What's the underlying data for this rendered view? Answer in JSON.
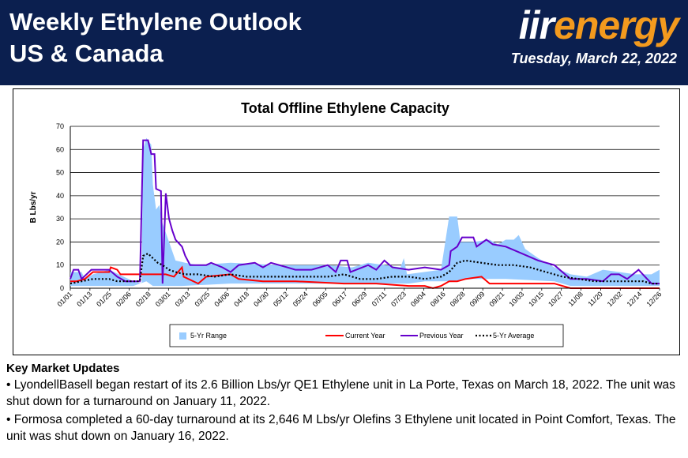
{
  "header": {
    "title_line1": "Weekly Ethylene Outlook",
    "title_line2": "US & Canada",
    "logo_iir": "iir",
    "logo_energy": "energy",
    "date": "Tuesday, March 22, 2022"
  },
  "colors": {
    "header_bg": "#0b1f4f",
    "logo_orange": "#f39a1e",
    "range_fill": "#99ccff",
    "current_year": "#ff0000",
    "previous_year": "#6600cc",
    "avg": "#000000"
  },
  "chart_data": {
    "type": "area",
    "title": "Total Offline Ethylene Capacity",
    "ylabel": "B Lbs/yr",
    "xlabel": "",
    "ylim": [
      0,
      70
    ],
    "yticks": [
      0,
      10,
      20,
      30,
      40,
      50,
      60,
      70
    ],
    "grid": true,
    "legend_position": "bottom",
    "x_ticks": [
      "01/01",
      "01/13",
      "01/25",
      "02/06",
      "02/18",
      "03/01",
      "03/13",
      "03/25",
      "04/06",
      "04/18",
      "04/30",
      "05/12",
      "05/24",
      "06/05",
      "06/17",
      "06/29",
      "07/11",
      "07/23",
      "08/04",
      "08/16",
      "08/28",
      "09/09",
      "09/21",
      "10/03",
      "10/15",
      "10/27",
      "11/08",
      "11/20",
      "12/02",
      "12/14",
      "12/26"
    ],
    "day_range": [
      1,
      365
    ],
    "series": [
      {
        "name": "5-Yr Range",
        "kind": "band",
        "low": [
          [
            1,
            1
          ],
          [
            25,
            1
          ],
          [
            40,
            1
          ],
          [
            48,
            3
          ],
          [
            52,
            1
          ],
          [
            70,
            1
          ],
          [
            100,
            2
          ],
          [
            140,
            2
          ],
          [
            180,
            2
          ],
          [
            210,
            2
          ],
          [
            220,
            3
          ],
          [
            235,
            3
          ],
          [
            250,
            4
          ],
          [
            270,
            4
          ],
          [
            300,
            3
          ],
          [
            310,
            1
          ],
          [
            330,
            1
          ],
          [
            365,
            1
          ]
        ],
        "high": [
          [
            1,
            7
          ],
          [
            8,
            7
          ],
          [
            10,
            4
          ],
          [
            15,
            6
          ],
          [
            25,
            8
          ],
          [
            40,
            3
          ],
          [
            45,
            2
          ],
          [
            46,
            60
          ],
          [
            48,
            65
          ],
          [
            51,
            62
          ],
          [
            52,
            45
          ],
          [
            54,
            34
          ],
          [
            56,
            36
          ],
          [
            58,
            28
          ],
          [
            62,
            20
          ],
          [
            66,
            12
          ],
          [
            72,
            11
          ],
          [
            80,
            10
          ],
          [
            100,
            11
          ],
          [
            130,
            10
          ],
          [
            160,
            10
          ],
          [
            175,
            9
          ],
          [
            185,
            11
          ],
          [
            205,
            9
          ],
          [
            207,
            13
          ],
          [
            209,
            6
          ],
          [
            230,
            8
          ],
          [
            235,
            31
          ],
          [
            240,
            31
          ],
          [
            242,
            20
          ],
          [
            250,
            20
          ],
          [
            260,
            21
          ],
          [
            265,
            19
          ],
          [
            270,
            21
          ],
          [
            275,
            21
          ],
          [
            278,
            23
          ],
          [
            282,
            17
          ],
          [
            290,
            13
          ],
          [
            300,
            9
          ],
          [
            310,
            6
          ],
          [
            320,
            5
          ],
          [
            330,
            8
          ],
          [
            340,
            7
          ],
          [
            350,
            6
          ],
          [
            360,
            6
          ],
          [
            365,
            8
          ]
        ]
      },
      {
        "name": "Current Year",
        "kind": "line",
        "points": [
          [
            1,
            3
          ],
          [
            5,
            3
          ],
          [
            10,
            4
          ],
          [
            15,
            7
          ],
          [
            25,
            7
          ],
          [
            26,
            9
          ],
          [
            30,
            8
          ],
          [
            32,
            6
          ],
          [
            45,
            6
          ],
          [
            60,
            6
          ],
          [
            65,
            5
          ],
          [
            70,
            9
          ],
          [
            71,
            5
          ],
          [
            80,
            2
          ],
          [
            85,
            5
          ],
          [
            100,
            6
          ],
          [
            105,
            4
          ],
          [
            120,
            3
          ],
          [
            140,
            3
          ],
          [
            170,
            2
          ],
          [
            190,
            2
          ],
          [
            210,
            1
          ],
          [
            220,
            1
          ],
          [
            225,
            0
          ],
          [
            230,
            1
          ],
          [
            235,
            3
          ],
          [
            240,
            3
          ],
          [
            245,
            4
          ],
          [
            255,
            5
          ],
          [
            260,
            2
          ],
          [
            270,
            2
          ],
          [
            290,
            2
          ],
          [
            300,
            2
          ],
          [
            305,
            1
          ],
          [
            310,
            0
          ],
          [
            320,
            0
          ],
          [
            330,
            0
          ],
          [
            345,
            0
          ],
          [
            360,
            0
          ],
          [
            365,
            0
          ]
        ]
      },
      {
        "name": "Previous Year",
        "kind": "line",
        "points": [
          [
            1,
            4
          ],
          [
            3,
            8
          ],
          [
            6,
            8
          ],
          [
            8,
            4
          ],
          [
            14,
            8
          ],
          [
            25,
            8
          ],
          [
            30,
            5
          ],
          [
            35,
            3
          ],
          [
            40,
            3
          ],
          [
            44,
            3
          ],
          [
            46,
            64
          ],
          [
            49,
            64
          ],
          [
            51,
            58
          ],
          [
            53,
            58
          ],
          [
            54,
            43
          ],
          [
            57,
            42
          ],
          [
            58,
            2
          ],
          [
            60,
            41
          ],
          [
            62,
            30
          ],
          [
            64,
            25
          ],
          [
            66,
            21
          ],
          [
            70,
            18
          ],
          [
            72,
            14
          ],
          [
            75,
            10
          ],
          [
            85,
            10
          ],
          [
            88,
            11
          ],
          [
            95,
            9
          ],
          [
            100,
            7
          ],
          [
            105,
            10
          ],
          [
            115,
            11
          ],
          [
            120,
            9
          ],
          [
            125,
            11
          ],
          [
            135,
            9
          ],
          [
            140,
            8
          ],
          [
            150,
            8
          ],
          [
            160,
            10
          ],
          [
            165,
            7
          ],
          [
            168,
            12
          ],
          [
            172,
            12
          ],
          [
            174,
            7
          ],
          [
            185,
            10
          ],
          [
            190,
            8
          ],
          [
            195,
            12
          ],
          [
            200,
            9
          ],
          [
            210,
            8
          ],
          [
            220,
            9
          ],
          [
            230,
            8
          ],
          [
            235,
            10
          ],
          [
            236,
            16
          ],
          [
            240,
            18
          ],
          [
            243,
            22
          ],
          [
            250,
            22
          ],
          [
            252,
            18
          ],
          [
            258,
            21
          ],
          [
            262,
            19
          ],
          [
            270,
            18
          ],
          [
            280,
            15
          ],
          [
            290,
            12
          ],
          [
            300,
            10
          ],
          [
            305,
            7
          ],
          [
            310,
            4
          ],
          [
            320,
            4
          ],
          [
            330,
            3
          ],
          [
            335,
            6
          ],
          [
            340,
            6
          ],
          [
            345,
            4
          ],
          [
            352,
            8
          ],
          [
            356,
            5
          ],
          [
            360,
            2
          ],
          [
            365,
            2
          ]
        ]
      },
      {
        "name": "5-Yr Average",
        "kind": "dotted",
        "points": [
          [
            1,
            2
          ],
          [
            8,
            3
          ],
          [
            15,
            4
          ],
          [
            25,
            4
          ],
          [
            30,
            3
          ],
          [
            40,
            3
          ],
          [
            44,
            3
          ],
          [
            46,
            14
          ],
          [
            49,
            15
          ],
          [
            52,
            13
          ],
          [
            55,
            11
          ],
          [
            58,
            10
          ],
          [
            62,
            8
          ],
          [
            66,
            7
          ],
          [
            72,
            6
          ],
          [
            80,
            6
          ],
          [
            90,
            5
          ],
          [
            100,
            6
          ],
          [
            110,
            5
          ],
          [
            130,
            5
          ],
          [
            150,
            5
          ],
          [
            160,
            5
          ],
          [
            170,
            6
          ],
          [
            180,
            4
          ],
          [
            190,
            4
          ],
          [
            200,
            5
          ],
          [
            210,
            5
          ],
          [
            220,
            4
          ],
          [
            230,
            5
          ],
          [
            235,
            7
          ],
          [
            240,
            11
          ],
          [
            245,
            12
          ],
          [
            255,
            11
          ],
          [
            265,
            10
          ],
          [
            275,
            10
          ],
          [
            285,
            9
          ],
          [
            295,
            7
          ],
          [
            305,
            5
          ],
          [
            315,
            4
          ],
          [
            325,
            3
          ],
          [
            335,
            3
          ],
          [
            345,
            3
          ],
          [
            355,
            3
          ],
          [
            360,
            2
          ],
          [
            365,
            2
          ]
        ]
      }
    ]
  },
  "updates": {
    "heading": "Key Market Updates",
    "items": [
      "•  LyondellBasell began restart of its 2.6 Billion Lbs/yr QE1 Ethylene unit in La Porte, Texas on March 18, 2022. The unit was shut down for a turnaround on January 11, 2022.",
      "• Formosa completed a 60-day turnaround at its 2,646 M Lbs/yr Olefins 3 Ethylene unit located in Point Comfort, Texas. The unit was shut down on January 16, 2022."
    ]
  }
}
